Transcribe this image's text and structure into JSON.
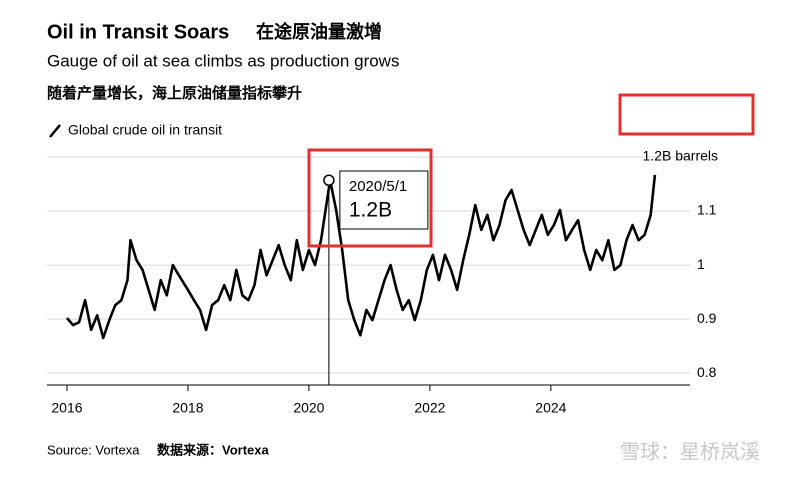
{
  "chart_data": {
    "type": "line",
    "title": "Oil in Transit Soars",
    "title_cn": "在途原油量激增",
    "subtitle": "Gauge of oil at sea climbs as production grows",
    "subtitle_cn": "随着产量增长，海上原油储量指标攀升",
    "source": "Source: Vortexa",
    "source_cn": "数据来源：Vortexa",
    "watermark": "雪球：星桥岚溪",
    "xlim": [
      2015.67,
      2026.3
    ],
    "xticks": [
      2016,
      2018,
      2020,
      2022,
      2024
    ],
    "ylim": [
      0.778,
      1.213
    ],
    "yticks": [
      0.8,
      0.9,
      1.0,
      1.1,
      {
        "value": 1.2,
        "label": "1.2B barrels"
      }
    ],
    "grid": true,
    "annotation": {
      "x": 2020.33,
      "y": 1.157,
      "date_label": "2020/5/1",
      "value_label": "1.2B"
    },
    "x": [
      2016.0,
      2016.1,
      2016.2,
      2016.3,
      2016.4,
      2016.5,
      2016.6,
      2016.7,
      2016.8,
      2016.9,
      2017.0,
      2017.05,
      2017.15,
      2017.25,
      2017.35,
      2017.45,
      2017.55,
      2017.65,
      2017.75,
      2017.85,
      2018.0,
      2018.1,
      2018.2,
      2018.3,
      2018.4,
      2018.5,
      2018.6,
      2018.7,
      2018.8,
      2018.9,
      2019.0,
      2019.1,
      2019.2,
      2019.3,
      2019.4,
      2019.5,
      2019.6,
      2019.7,
      2019.8,
      2019.9,
      2020.0,
      2020.1,
      2020.2,
      2020.3,
      2020.35,
      2020.45,
      2020.55,
      2020.65,
      2020.75,
      2020.85,
      2020.95,
      2021.05,
      2021.15,
      2021.25,
      2021.35,
      2021.45,
      2021.55,
      2021.65,
      2021.75,
      2021.85,
      2021.95,
      2022.05,
      2022.15,
      2022.25,
      2022.35,
      2022.45,
      2022.55,
      2022.65,
      2022.75,
      2022.85,
      2022.95,
      2023.05,
      2023.15,
      2023.25,
      2023.35,
      2023.45,
      2023.55,
      2023.65,
      2023.75,
      2023.85,
      2023.95,
      2024.05,
      2024.15,
      2024.25,
      2024.35,
      2024.45,
      2024.55,
      2024.65,
      2024.75,
      2024.85,
      2024.95,
      2025.05,
      2025.15,
      2025.25,
      2025.35,
      2025.45,
      2025.55,
      2025.65,
      2025.72
    ],
    "series": [
      {
        "name": "Global crude oil in transit",
        "color": "#000000",
        "values": [
          0.902,
          0.889,
          0.894,
          0.935,
          0.88,
          0.907,
          0.865,
          0.898,
          0.926,
          0.935,
          0.972,
          1.046,
          1.009,
          0.991,
          0.954,
          0.917,
          0.972,
          0.944,
          1.0,
          0.981,
          0.954,
          0.935,
          0.917,
          0.88,
          0.926,
          0.935,
          0.963,
          0.935,
          0.991,
          0.944,
          0.935,
          0.963,
          1.028,
          0.981,
          1.009,
          1.037,
          1.0,
          0.972,
          1.046,
          0.991,
          1.028,
          1.0,
          1.046,
          1.12,
          1.157,
          1.102,
          1.028,
          0.935,
          0.898,
          0.87,
          0.917,
          0.898,
          0.935,
          0.972,
          1.0,
          0.954,
          0.917,
          0.935,
          0.898,
          0.935,
          0.991,
          1.019,
          0.972,
          1.019,
          0.991,
          0.954,
          1.009,
          1.056,
          1.111,
          1.065,
          1.093,
          1.046,
          1.074,
          1.12,
          1.139,
          1.102,
          1.065,
          1.037,
          1.065,
          1.093,
          1.056,
          1.074,
          1.102,
          1.046,
          1.065,
          1.083,
          1.028,
          0.991,
          1.028,
          1.009,
          1.046,
          0.991,
          1.0,
          1.046,
          1.074,
          1.046,
          1.056,
          1.093,
          1.167
        ]
      }
    ]
  }
}
